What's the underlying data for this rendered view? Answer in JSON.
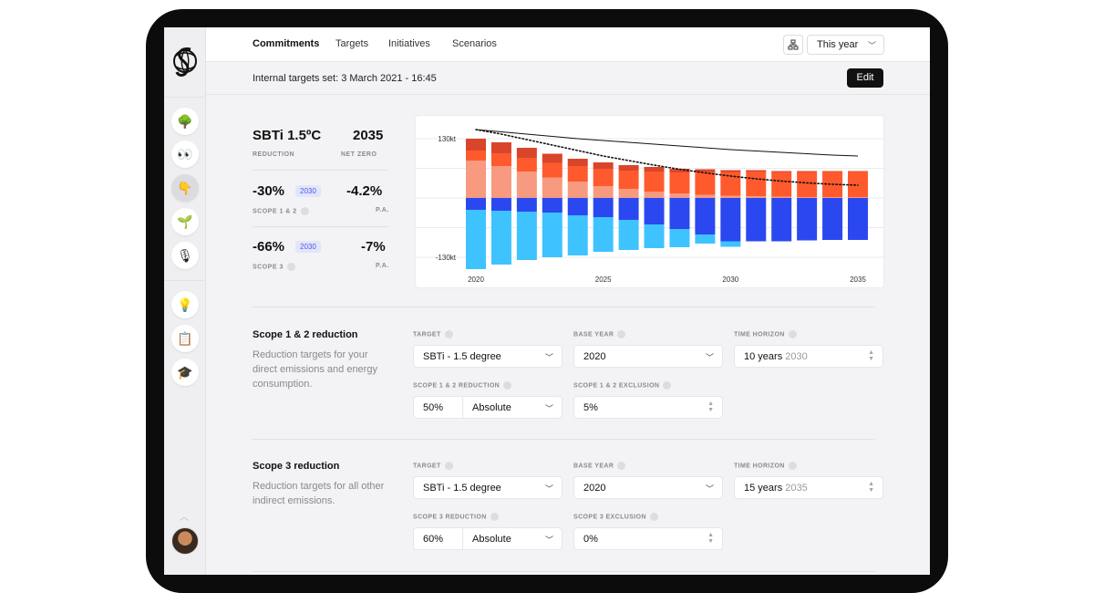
{
  "nav": {
    "tabs": [
      "Commitments",
      "Targets",
      "Initiatives",
      "Scenarios"
    ],
    "period": "This year"
  },
  "subheader": {
    "text": "Internal targets set: 3 March 2021 - 16:45",
    "edit_label": "Edit"
  },
  "sidebar": {
    "items": [
      "tree-icon",
      "eyes-icon",
      "hand-icon",
      "seedling-icon",
      "microphone-icon",
      "lightbulb-icon",
      "notepad-icon",
      "graduation-cap-icon"
    ],
    "glyphs": [
      "🌳",
      "👀",
      "👇",
      "🌱",
      "🎙",
      "💡",
      "📋",
      "🎓"
    ]
  },
  "metrics": {
    "target_name": "SBTi 1.5ºC",
    "target_label": "REDUCTION",
    "net_zero_year": "2035",
    "net_zero_label": "NET ZERO",
    "s12_value": "-30%",
    "s12_year": "2030",
    "s12_label": "SCOPE 1 & 2",
    "s12_pa": "-4.2%",
    "s12_pa_label": "P.A.",
    "s3_value": "-66%",
    "s3_year": "2030",
    "s3_label": "SCOPE 3",
    "s3_pa": "-7%",
    "s3_pa_label": "P.A."
  },
  "chart_data": {
    "type": "bar",
    "title": "",
    "xlabel": "",
    "ylabel": "",
    "y_tick_labels": [
      "130kt",
      "-130kt"
    ],
    "x_tick_labels": [
      "2020",
      "2025",
      "2030",
      "2035"
    ],
    "categories": [
      "2020",
      "2021",
      "2022",
      "2023",
      "2024",
      "2025",
      "2026",
      "2027",
      "2028",
      "2029",
      "2030",
      "2031",
      "2032",
      "2033",
      "2034",
      "2035"
    ],
    "ylim": [
      -160,
      160
    ],
    "series": [
      {
        "name": "Scope 1 (positive, light)",
        "color": "#f79a80",
        "values": [
          82,
          70,
          58,
          45,
          36,
          26,
          20,
          14,
          10,
          7,
          5,
          4,
          3,
          2,
          2,
          2
        ]
      },
      {
        "name": "Scope 2 (positive, orange)",
        "color": "#ff5a2d",
        "values": [
          22,
          28,
          30,
          32,
          34,
          38,
          40,
          44,
          46,
          50,
          52,
          54,
          54,
          55,
          56,
          56
        ]
      },
      {
        "name": "Scope 2 (positive, dark red)",
        "color": "#d9452b",
        "values": [
          26,
          24,
          22,
          20,
          16,
          14,
          12,
          10,
          8,
          6,
          4,
          3,
          2,
          2,
          1,
          1
        ]
      },
      {
        "name": "Scope 3 (negative, blue)",
        "color": "#2b48f0",
        "values": [
          -26,
          -28,
          -30,
          -32,
          -38,
          -42,
          -48,
          -58,
          -68,
          -80,
          -95,
          -95,
          -95,
          -93,
          -92,
          -92
        ]
      },
      {
        "name": "Scope 3 (negative, light blue)",
        "color": "#3ec3ff",
        "values": [
          -130,
          -118,
          -106,
          -98,
          -88,
          -76,
          -66,
          -52,
          -40,
          -20,
          -12,
          0,
          0,
          0,
          0,
          0
        ]
      }
    ],
    "reference_lines": [
      {
        "name": "Target pathway (solid)",
        "values": [
          150,
          145,
          140,
          135,
          130,
          126,
          122,
          118,
          114,
          110,
          106,
          103,
          100,
          97,
          94,
          92
        ]
      },
      {
        "name": "Projected pathway (dotted)",
        "values": [
          150,
          140,
          128,
          116,
          104,
          92,
          82,
          72,
          63,
          55,
          48,
          42,
          37,
          33,
          30,
          28
        ]
      }
    ]
  },
  "scope12": {
    "title": "Scope 1 & 2 reduction",
    "description": "Reduction targets for your direct emissions and energy consumption.",
    "target_label": "TARGET",
    "target_value": "SBTi - 1.5 degree",
    "base_year_label": "BASE YEAR",
    "base_year_value": "2020",
    "horizon_label": "TIME HORIZON",
    "horizon_value": "10 years",
    "horizon_year": "2030",
    "reduction_label": "SCOPE 1 & 2 REDUCTION",
    "reduction_pct": "50%",
    "reduction_type": "Absolute",
    "exclusion_label": "SCOPE 1 & 2 EXCLUSION",
    "exclusion_value": "5%"
  },
  "scope3": {
    "title": "Scope 3 reduction",
    "description": "Reduction targets for all other indirect emissions.",
    "target_label": "TARGET",
    "target_value": "SBTi - 1.5 degree",
    "base_year_label": "BASE YEAR",
    "base_year_value": "2020",
    "horizon_label": "TIME HORIZON",
    "horizon_value": "15 years",
    "horizon_year": "2035",
    "reduction_label": "SCOPE 3 REDUCTION",
    "reduction_pct": "60%",
    "reduction_type": "Absolute",
    "exclusion_label": "SCOPE 3 EXCLUSION",
    "exclusion_value": "0%"
  }
}
